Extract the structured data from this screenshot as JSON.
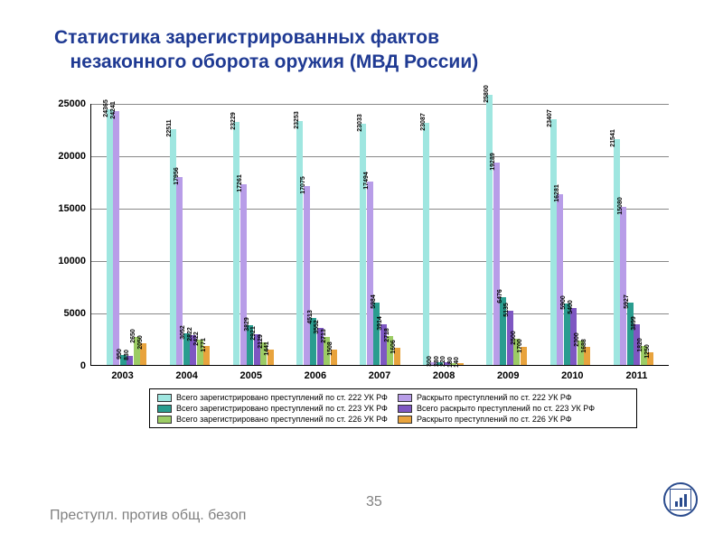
{
  "title_line1": "Статистика зарегистрированных фактов",
  "title_line2": "незаконного оборота оружия (МВД России)",
  "title_color": "#1f3a93",
  "title_fontsize": 21,
  "chart": {
    "type": "bar",
    "ylim": [
      0,
      25000
    ],
    "yticks": [
      0,
      5000,
      10000,
      15000,
      20000,
      25000
    ],
    "categories": [
      "2003",
      "2004",
      "2005",
      "2006",
      "2007",
      "2008",
      "2009",
      "2010",
      "2011"
    ],
    "series": [
      {
        "name": "Всего зарегистрировано преступлений по ст. 222 УК РФ",
        "color": "#9fe6e0"
      },
      {
        "name": "Раскрыто преступлений по ст. 222 УК РФ",
        "color": "#b89de8"
      },
      {
        "name": "Всего зарегистрировано преступлений по ст. 223 УК РФ",
        "color": "#2a9d8f"
      },
      {
        "name": "Всего раскрыто преступлений по ст. 223 УК РФ",
        "color": "#7e57c2"
      },
      {
        "name": "Всего зарегистрировано преступлений по ст. 226 УК РФ",
        "color": "#9ccc65"
      },
      {
        "name": "Раскрыто преступлений по ст. 226 УК РФ",
        "color": "#e8a33d"
      }
    ],
    "values": [
      [
        24365,
        24241,
        950,
        830,
        2650,
        2050
      ],
      [
        22511,
        17956,
        3052,
        2822,
        2422,
        1771
      ],
      [
        23229,
        17261,
        3829,
        2921,
        2129,
        1441
      ],
      [
        23253,
        17075,
        4513,
        3552,
        2713,
        1508
      ],
      [
        23033,
        17494,
        5984,
        3914,
        2718,
        1606
      ],
      [
        23087,
        300,
        280,
        220,
        180,
        140
      ],
      [
        25800,
        19289,
        6476,
        5135,
        2500,
        1700
      ],
      [
        23407,
        16281,
        5900,
        5400,
        2300,
        1688
      ],
      [
        21541,
        15080,
        5927,
        3899,
        1820,
        1250
      ]
    ],
    "grid_color": "#888888",
    "background": "#ffffff",
    "axis_fontsize": 11,
    "barlabel_fontsize": 7
  },
  "legend_border": "#000000",
  "footer_text": "Преступл. против общ. безоп",
  "footer_page": "35",
  "footer_color": "#808080",
  "logo_color": "#2a4b8d"
}
